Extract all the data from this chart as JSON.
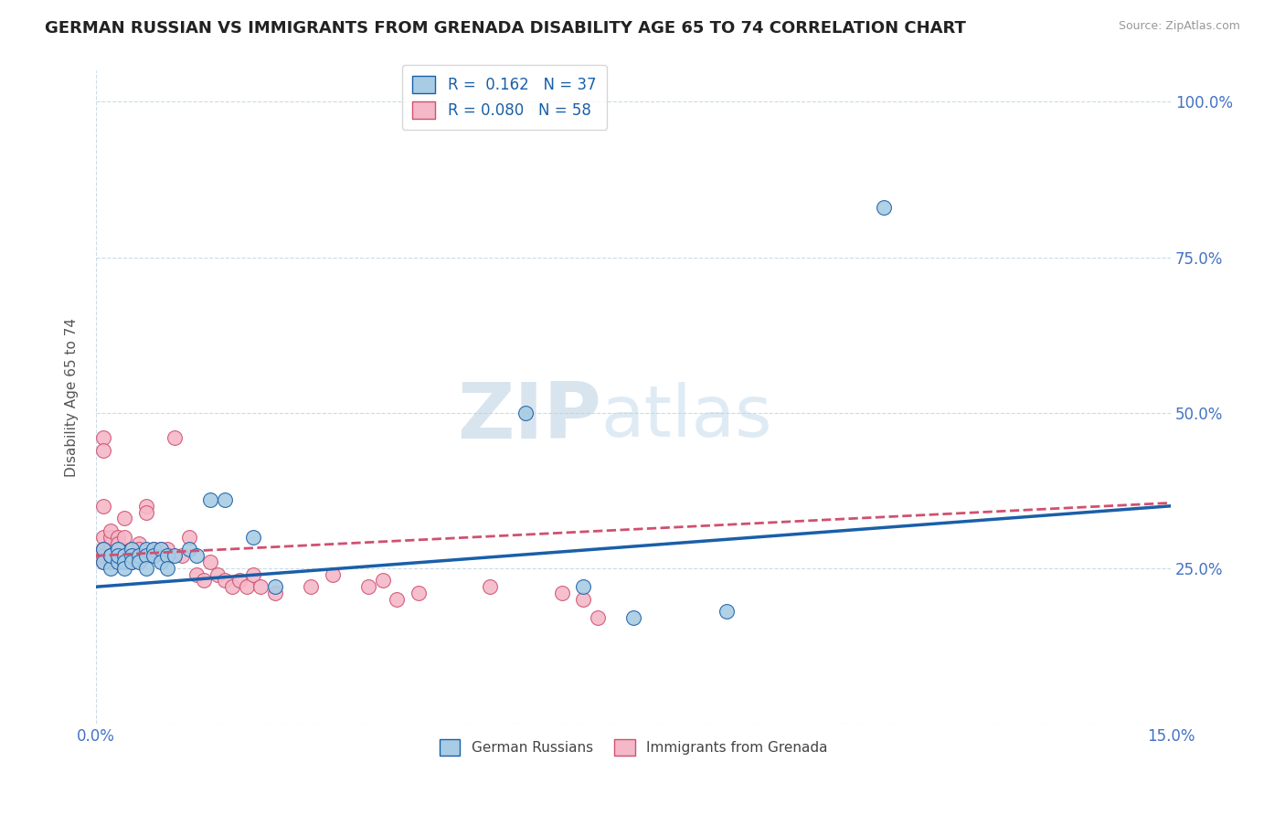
{
  "title": "GERMAN RUSSIAN VS IMMIGRANTS FROM GRENADA DISABILITY AGE 65 TO 74 CORRELATION CHART",
  "source": "Source: ZipAtlas.com",
  "ylabel": "Disability Age 65 to 74",
  "x_min": 0.0,
  "x_max": 0.15,
  "y_min": 0.0,
  "y_max": 1.05,
  "y_ticks": [
    0.0,
    0.25,
    0.5,
    0.75,
    1.0
  ],
  "y_tick_labels_right": [
    "",
    "25.0%",
    "50.0%",
    "75.0%",
    "100.0%"
  ],
  "x_ticks": [
    0.0,
    0.15
  ],
  "x_tick_labels": [
    "0.0%",
    "15.0%"
  ],
  "legend_r1": "R =  0.162",
  "legend_n1": "N = 37",
  "legend_r2": "R = 0.080",
  "legend_n2": "N = 58",
  "color_blue": "#a8cce4",
  "color_pink": "#f4b8c8",
  "color_blue_line": "#1a5fa8",
  "color_pink_line": "#d05070",
  "background_color": "#ffffff",
  "watermark": "ZIPatlas",
  "german_russian_x": [
    0.001,
    0.001,
    0.002,
    0.002,
    0.002,
    0.003,
    0.003,
    0.003,
    0.004,
    0.004,
    0.004,
    0.005,
    0.005,
    0.005,
    0.006,
    0.006,
    0.007,
    0.007,
    0.007,
    0.008,
    0.008,
    0.009,
    0.009,
    0.01,
    0.01,
    0.011,
    0.013,
    0.014,
    0.016,
    0.018,
    0.022,
    0.025,
    0.06,
    0.068,
    0.075,
    0.088,
    0.11
  ],
  "german_russian_y": [
    0.28,
    0.26,
    0.27,
    0.25,
    0.27,
    0.28,
    0.26,
    0.27,
    0.27,
    0.26,
    0.25,
    0.28,
    0.27,
    0.26,
    0.27,
    0.26,
    0.28,
    0.27,
    0.25,
    0.28,
    0.27,
    0.28,
    0.26,
    0.27,
    0.25,
    0.27,
    0.28,
    0.27,
    0.36,
    0.36,
    0.3,
    0.22,
    0.5,
    0.22,
    0.17,
    0.18,
    0.83
  ],
  "grenada_x": [
    0.001,
    0.001,
    0.001,
    0.001,
    0.001,
    0.001,
    0.001,
    0.001,
    0.001,
    0.002,
    0.002,
    0.002,
    0.002,
    0.002,
    0.002,
    0.003,
    0.003,
    0.003,
    0.003,
    0.004,
    0.004,
    0.004,
    0.005,
    0.005,
    0.005,
    0.006,
    0.006,
    0.007,
    0.007,
    0.008,
    0.008,
    0.009,
    0.01,
    0.01,
    0.011,
    0.012,
    0.013,
    0.014,
    0.015,
    0.016,
    0.017,
    0.018,
    0.019,
    0.02,
    0.021,
    0.022,
    0.023,
    0.025,
    0.03,
    0.033,
    0.038,
    0.04,
    0.042,
    0.045,
    0.055,
    0.065,
    0.068,
    0.07
  ],
  "grenada_y": [
    0.28,
    0.27,
    0.26,
    0.3,
    0.28,
    0.27,
    0.46,
    0.44,
    0.35,
    0.29,
    0.28,
    0.27,
    0.26,
    0.3,
    0.31,
    0.28,
    0.27,
    0.3,
    0.29,
    0.33,
    0.3,
    0.27,
    0.27,
    0.26,
    0.28,
    0.29,
    0.28,
    0.35,
    0.34,
    0.28,
    0.27,
    0.28,
    0.27,
    0.28,
    0.46,
    0.27,
    0.3,
    0.24,
    0.23,
    0.26,
    0.24,
    0.23,
    0.22,
    0.23,
    0.22,
    0.24,
    0.22,
    0.21,
    0.22,
    0.24,
    0.22,
    0.23,
    0.2,
    0.21,
    0.22,
    0.21,
    0.2,
    0.17
  ]
}
